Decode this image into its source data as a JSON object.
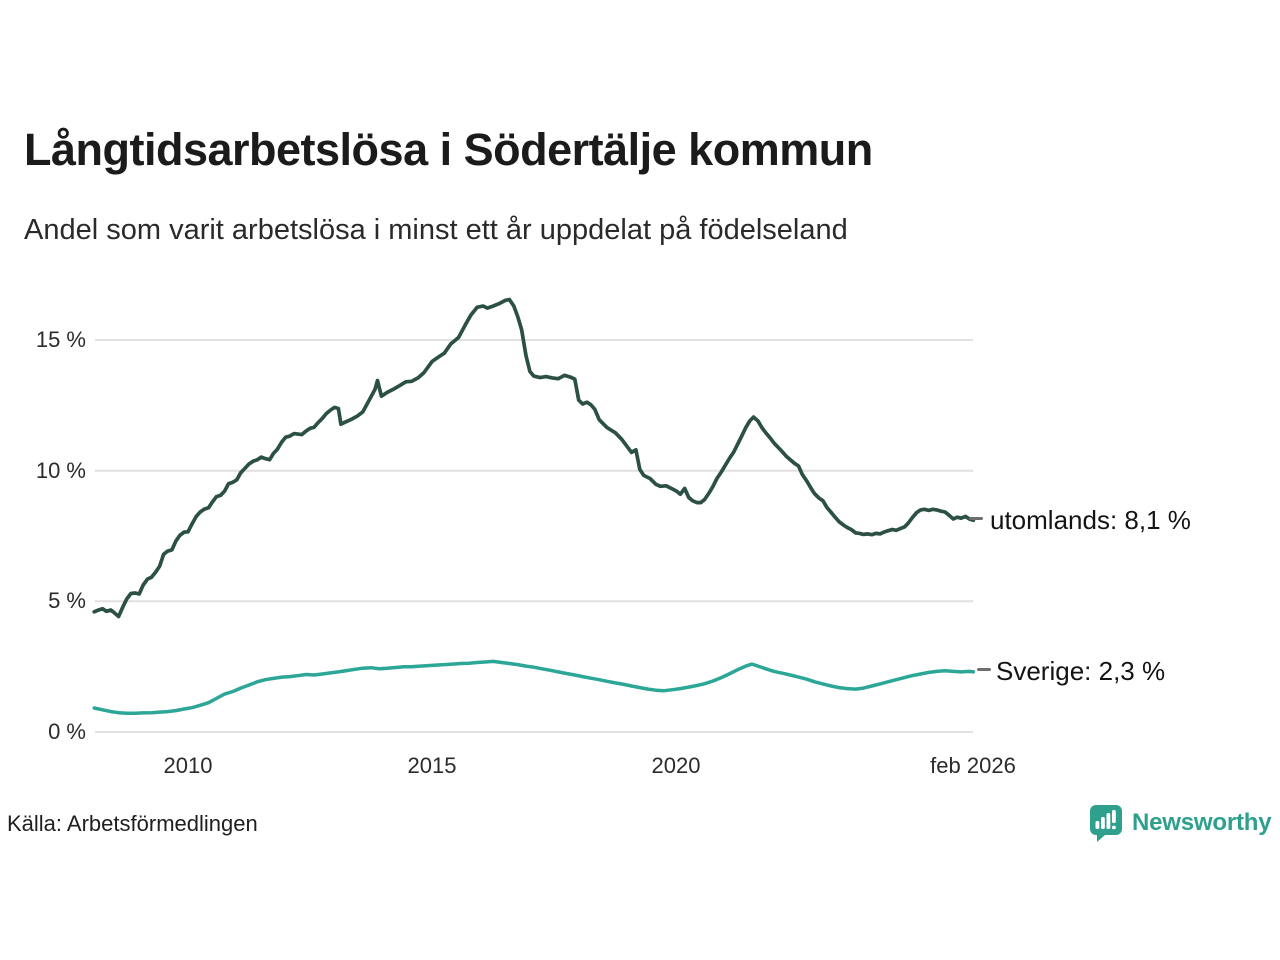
{
  "header": {
    "title": "Långtidsarbetslösa i Södertälje kommun",
    "subtitle": "Andel som varit arbetslösa i minst ett år uppdelat på födelseland"
  },
  "footer": {
    "source": "Källa: Arbetsförmedlingen",
    "brand": "Newsworthy"
  },
  "colors": {
    "utomlands_line": "#2c4f46",
    "sverige_line": "#2ca797",
    "brand_teal": "#2f9f8e",
    "gridline": "#e0e0e0",
    "label_dash": "#6f6f6f",
    "text": "#1b1b1b"
  },
  "chart_data": {
    "type": "line",
    "title": "Långtidsarbetslösa i Södertälje kommun",
    "subtitle": "Andel som varit arbetslösa i minst ett år uppdelat på födelseland",
    "grid": "horizontal",
    "legend_position": "end-of-line-labels",
    "x_axis": {
      "ticks": [
        {
          "value": 2010,
          "label": "2010"
        },
        {
          "value": 2015,
          "label": "2015"
        },
        {
          "value": 2020,
          "label": "2020"
        },
        {
          "value": 2026.08,
          "label": "feb 2026"
        }
      ],
      "range": [
        2008.0,
        2026.3
      ]
    },
    "y_axis": {
      "unit": "%",
      "ticks": [
        {
          "value": 0,
          "label": "0 %"
        },
        {
          "value": 5,
          "label": "5 %"
        },
        {
          "value": 10,
          "label": "10 %"
        },
        {
          "value": 15,
          "label": "15 %"
        }
      ],
      "range": [
        0,
        17
      ]
    },
    "series": [
      {
        "name": "utomlands",
        "end_label": "utomlands: 8,1 %",
        "latest_value": "8,1 %",
        "color": "#2c4f46",
        "x": [
          2008.08,
          2008.17,
          2008.25,
          2008.33,
          2008.42,
          2008.5,
          2008.58,
          2008.67,
          2008.75,
          2008.83,
          2008.92,
          2009.0,
          2009.08,
          2009.17,
          2009.25,
          2009.33,
          2009.42,
          2009.5,
          2009.58,
          2009.67,
          2009.75,
          2009.83,
          2009.92,
          2010.0,
          2010.08,
          2010.17,
          2010.25,
          2010.33,
          2010.42,
          2010.5,
          2010.58,
          2010.67,
          2010.75,
          2010.83,
          2010.92,
          2011.0,
          2011.08,
          2011.17,
          2011.25,
          2011.33,
          2011.42,
          2011.5,
          2011.58,
          2011.67,
          2011.75,
          2011.83,
          2011.92,
          2012.0,
          2012.08,
          2012.17,
          2012.25,
          2012.33,
          2012.42,
          2012.5,
          2012.58,
          2012.67,
          2012.75,
          2012.83,
          2012.92,
          2013.0,
          2013.08,
          2013.13,
          2013.21,
          2013.33,
          2013.46,
          2013.58,
          2013.71,
          2013.83,
          2013.88,
          2013.96,
          2014.08,
          2014.21,
          2014.33,
          2014.46,
          2014.58,
          2014.71,
          2014.83,
          2014.92,
          2015.0,
          2015.13,
          2015.25,
          2015.38,
          2015.54,
          2015.67,
          2015.79,
          2015.92,
          2016.04,
          2016.13,
          2016.25,
          2016.38,
          2016.5,
          2016.58,
          2016.67,
          2016.75,
          2016.83,
          2016.92,
          2017.0,
          2017.08,
          2017.21,
          2017.33,
          2017.46,
          2017.58,
          2017.71,
          2017.83,
          2017.92,
          2018.0,
          2018.08,
          2018.17,
          2018.25,
          2018.33,
          2018.42,
          2018.58,
          2018.75,
          2018.88,
          2019.0,
          2019.08,
          2019.17,
          2019.25,
          2019.33,
          2019.46,
          2019.58,
          2019.67,
          2019.79,
          2019.92,
          2020.0,
          2020.08,
          2020.17,
          2020.25,
          2020.33,
          2020.42,
          2020.5,
          2020.58,
          2020.67,
          2020.75,
          2020.83,
          2020.92,
          2021.0,
          2021.08,
          2021.17,
          2021.25,
          2021.33,
          2021.42,
          2021.5,
          2021.58,
          2021.67,
          2021.75,
          2021.83,
          2021.92,
          2022.0,
          2022.08,
          2022.17,
          2022.25,
          2022.33,
          2022.42,
          2022.5,
          2022.58,
          2022.67,
          2022.75,
          2022.83,
          2022.92,
          2023.0,
          2023.08,
          2023.17,
          2023.25,
          2023.33,
          2023.42,
          2023.5,
          2023.58,
          2023.67,
          2023.75,
          2023.83,
          2023.92,
          2024.0,
          2024.08,
          2024.17,
          2024.25,
          2024.33,
          2024.42,
          2024.5,
          2024.58,
          2024.67,
          2024.75,
          2024.83,
          2024.92,
          2025.0,
          2025.08,
          2025.17,
          2025.25,
          2025.33,
          2025.42,
          2025.5,
          2025.58,
          2025.67,
          2025.75,
          2025.83,
          2025.92,
          2026.0,
          2026.08
        ],
        "values": [
          4.6,
          4.67,
          4.72,
          4.62,
          4.67,
          4.55,
          4.42,
          4.8,
          5.1,
          5.3,
          5.32,
          5.28,
          5.62,
          5.85,
          5.92,
          6.1,
          6.35,
          6.8,
          6.92,
          6.97,
          7.3,
          7.52,
          7.65,
          7.66,
          7.95,
          8.25,
          8.42,
          8.52,
          8.58,
          8.8,
          9.0,
          9.06,
          9.22,
          9.5,
          9.56,
          9.65,
          9.92,
          10.1,
          10.26,
          10.36,
          10.42,
          10.52,
          10.46,
          10.42,
          10.66,
          10.82,
          11.1,
          11.28,
          11.32,
          11.42,
          11.4,
          11.38,
          11.52,
          11.62,
          11.66,
          11.85,
          12.0,
          12.18,
          12.32,
          12.42,
          12.38,
          11.78,
          11.85,
          11.95,
          12.08,
          12.25,
          12.7,
          13.12,
          13.45,
          12.85,
          13.0,
          13.12,
          13.25,
          13.4,
          13.42,
          13.55,
          13.75,
          13.98,
          14.18,
          14.35,
          14.5,
          14.85,
          15.1,
          15.55,
          15.95,
          16.25,
          16.3,
          16.22,
          16.3,
          16.4,
          16.52,
          16.55,
          16.3,
          15.9,
          15.4,
          14.4,
          13.8,
          13.62,
          13.56,
          13.6,
          13.55,
          13.52,
          13.65,
          13.58,
          13.5,
          12.7,
          12.55,
          12.62,
          12.52,
          12.35,
          11.95,
          11.65,
          11.45,
          11.2,
          10.9,
          10.7,
          10.8,
          10.05,
          9.82,
          9.7,
          9.48,
          9.4,
          9.42,
          9.3,
          9.22,
          9.1,
          9.32,
          8.98,
          8.85,
          8.78,
          8.78,
          8.9,
          9.15,
          9.4,
          9.7,
          9.95,
          10.2,
          10.45,
          10.7,
          11.0,
          11.3,
          11.65,
          11.9,
          12.05,
          11.9,
          11.65,
          11.45,
          11.25,
          11.05,
          10.9,
          10.72,
          10.55,
          10.42,
          10.28,
          10.18,
          9.85,
          9.6,
          9.35,
          9.12,
          8.95,
          8.85,
          8.6,
          8.4,
          8.22,
          8.05,
          7.92,
          7.82,
          7.75,
          7.62,
          7.6,
          7.56,
          7.58,
          7.55,
          7.6,
          7.58,
          7.65,
          7.7,
          7.75,
          7.72,
          7.78,
          7.85,
          8.0,
          8.2,
          8.4,
          8.5,
          8.52,
          8.48,
          8.52,
          8.5,
          8.45,
          8.42,
          8.3,
          8.15,
          8.22,
          8.18,
          8.25,
          8.15,
          8.1
        ]
      },
      {
        "name": "Sverige",
        "end_label": "Sverige: 2,3 %",
        "latest_value": "2,3 %",
        "color": "#2ca797",
        "x": [
          2008.08,
          2008.25,
          2008.42,
          2008.58,
          2008.75,
          2008.92,
          2009.08,
          2009.25,
          2009.42,
          2009.58,
          2009.75,
          2009.92,
          2010.08,
          2010.25,
          2010.42,
          2010.58,
          2010.75,
          2010.92,
          2011.08,
          2011.25,
          2011.42,
          2011.58,
          2011.75,
          2011.92,
          2012.08,
          2012.25,
          2012.42,
          2012.58,
          2012.75,
          2012.92,
          2013.08,
          2013.25,
          2013.42,
          2013.58,
          2013.75,
          2013.92,
          2014.08,
          2014.25,
          2014.42,
          2014.58,
          2014.75,
          2014.92,
          2015.08,
          2015.25,
          2015.42,
          2015.58,
          2015.75,
          2015.92,
          2016.08,
          2016.25,
          2016.42,
          2016.58,
          2016.75,
          2016.92,
          2017.08,
          2017.25,
          2017.42,
          2017.58,
          2017.75,
          2017.92,
          2018.08,
          2018.25,
          2018.42,
          2018.58,
          2018.75,
          2018.92,
          2019.08,
          2019.25,
          2019.42,
          2019.58,
          2019.75,
          2019.92,
          2020.08,
          2020.25,
          2020.42,
          2020.58,
          2020.75,
          2020.92,
          2021.08,
          2021.25,
          2021.42,
          2021.55,
          2021.67,
          2021.83,
          2022.0,
          2022.17,
          2022.33,
          2022.5,
          2022.67,
          2022.83,
          2023.0,
          2023.17,
          2023.33,
          2023.5,
          2023.67,
          2023.83,
          2024.0,
          2024.17,
          2024.33,
          2024.5,
          2024.67,
          2024.83,
          2025.0,
          2025.17,
          2025.33,
          2025.5,
          2025.67,
          2025.83,
          2026.0,
          2026.08
        ],
        "values": [
          0.92,
          0.85,
          0.78,
          0.74,
          0.72,
          0.72,
          0.73,
          0.74,
          0.76,
          0.78,
          0.82,
          0.88,
          0.93,
          1.02,
          1.12,
          1.28,
          1.45,
          1.55,
          1.68,
          1.8,
          1.92,
          2.0,
          2.05,
          2.1,
          2.12,
          2.16,
          2.2,
          2.18,
          2.22,
          2.26,
          2.3,
          2.35,
          2.4,
          2.44,
          2.46,
          2.42,
          2.44,
          2.47,
          2.5,
          2.5,
          2.52,
          2.54,
          2.56,
          2.58,
          2.6,
          2.62,
          2.63,
          2.66,
          2.68,
          2.7,
          2.66,
          2.62,
          2.58,
          2.52,
          2.48,
          2.42,
          2.36,
          2.3,
          2.24,
          2.18,
          2.12,
          2.06,
          2.0,
          1.94,
          1.88,
          1.82,
          1.76,
          1.7,
          1.64,
          1.6,
          1.58,
          1.62,
          1.66,
          1.72,
          1.78,
          1.85,
          1.95,
          2.08,
          2.22,
          2.38,
          2.52,
          2.6,
          2.52,
          2.42,
          2.32,
          2.25,
          2.18,
          2.1,
          2.02,
          1.92,
          1.84,
          1.76,
          1.7,
          1.66,
          1.64,
          1.68,
          1.76,
          1.84,
          1.92,
          2.0,
          2.08,
          2.16,
          2.22,
          2.28,
          2.32,
          2.34,
          2.32,
          2.3,
          2.32,
          2.3
        ]
      }
    ]
  }
}
